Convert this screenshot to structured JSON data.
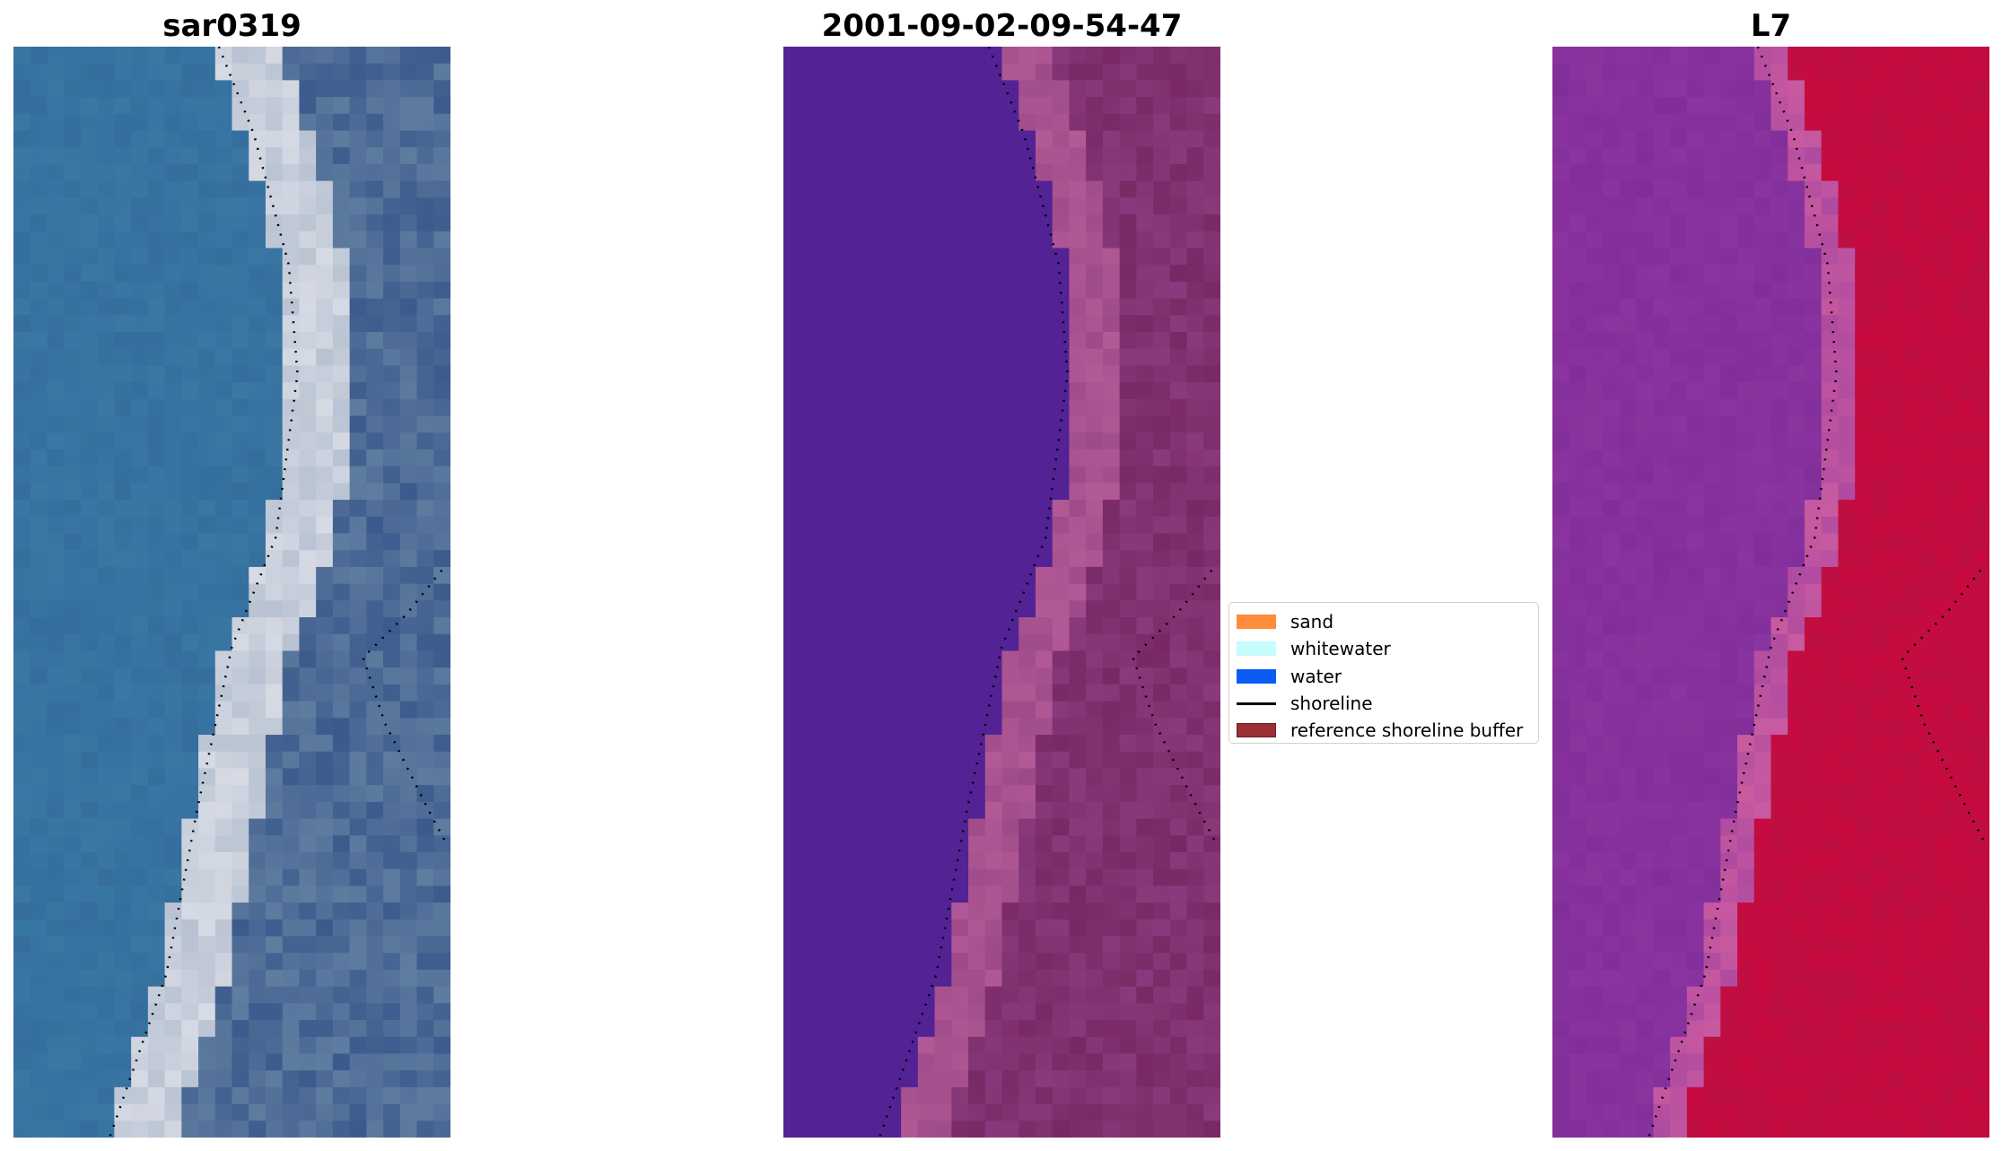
{
  "figure": {
    "titles": [
      "sar0319",
      "2001-09-02-09-54-47",
      "L7"
    ],
    "legend": [
      {
        "label": "sand",
        "color": "#ff8c3a",
        "kind": "patch"
      },
      {
        "label": "whitewater",
        "color": "#c6fcfc",
        "kind": "patch"
      },
      {
        "label": "water",
        "color": "#0a5cf5",
        "kind": "patch"
      },
      {
        "label": "shoreline",
        "color": "#000000",
        "kind": "line"
      },
      {
        "label": "reference shoreline buffer",
        "color": "#9a2f35",
        "kind": "patch"
      }
    ],
    "colors": {
      "rgb_water": "#3a78a4",
      "rgb_beach": "#b8c2d2",
      "class_water": "#532295",
      "class_land": "#8a3a7c",
      "mndwi_water": "#8a34a0",
      "mndwi_land": "#c70a3e"
    }
  }
}
